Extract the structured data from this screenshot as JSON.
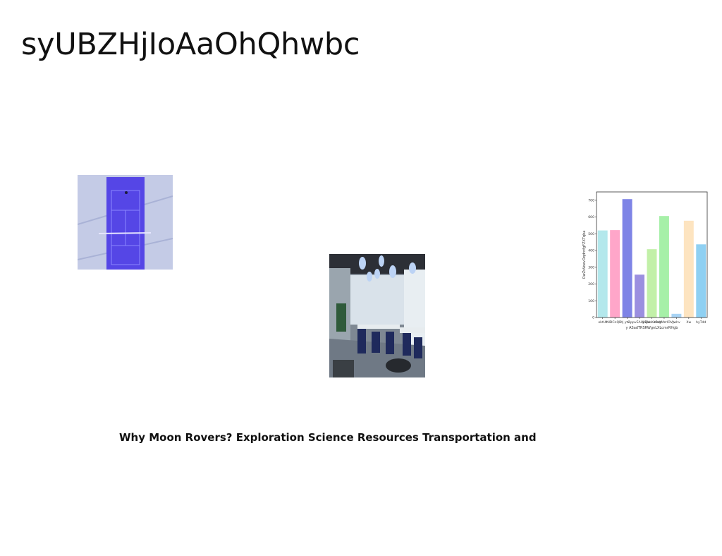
{
  "page": {
    "title": "syUBZHjIoAaOhQhwbc",
    "caption": "Why Moon Rovers? Exploration Science Resources Transportation and"
  },
  "images": [
    {
      "name": "tennis-court-aerial-photo",
      "colors": {
        "court": "#5546e6",
        "ground": "#c4cbe6"
      }
    },
    {
      "name": "modern-cafe-interior-photo",
      "colors": {
        "wall": "#8f9aa4",
        "floor": "#7d8791",
        "chairs": "#1f2a5c"
      }
    }
  ],
  "chart_data": {
    "type": "bar",
    "categories": [
      "ektUt",
      "NIDCnQBtj",
      "ytC",
      "eppvEAULRez",
      "ySJVuKehoy",
      "tOdtMzrlOVc",
      "Jwhv",
      "Xw",
      "hyTdd"
    ],
    "values": [
      520,
      522,
      707,
      256,
      408,
      606,
      22,
      578,
      437
    ],
    "colors": [
      "#b3e8ec",
      "#ffa6c9",
      "#7e84e6",
      "#9b8fe0",
      "#c2f0a8",
      "#a6f0a8",
      "#a9d4f5",
      "#fde4c0",
      "#8fd0f2"
    ],
    "xlabel": "y ASadTRSRWgnLXLcmrRHgb",
    "ylabel": "OwZsVoevOqdrnfgFZXTqba",
    "ylim": [
      0,
      750
    ],
    "yticks": [
      0,
      100,
      200,
      300,
      400,
      500,
      600,
      700
    ],
    "grid": false
  }
}
